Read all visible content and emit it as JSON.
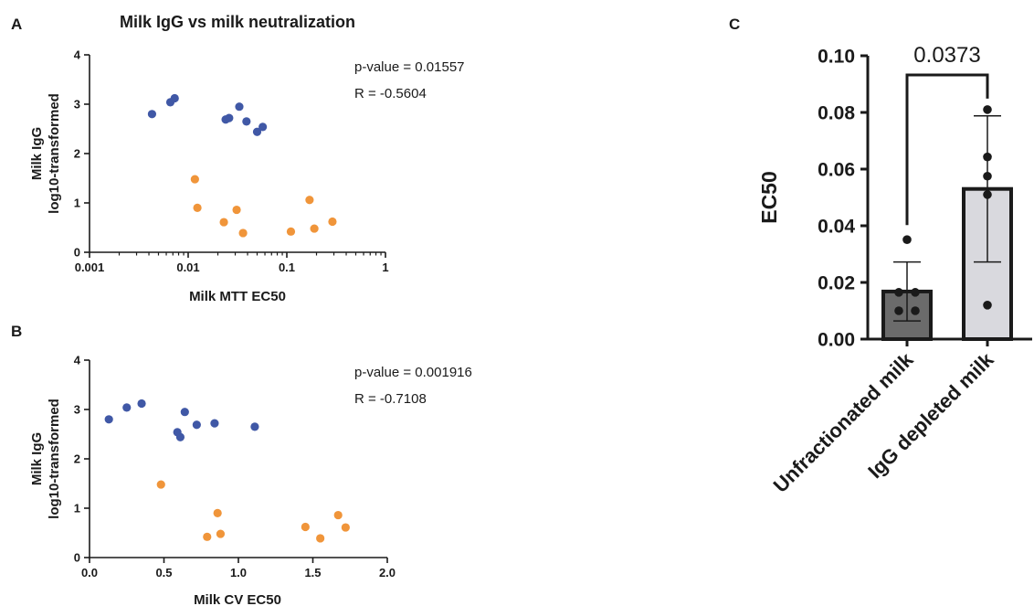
{
  "panels": {
    "a_letter": "A",
    "b_letter": "B",
    "c_letter": "C"
  },
  "colors": {
    "igg_high": "#4058a6",
    "igg_low": "#f0953a",
    "bar_unfractionated": "#6b6b6b",
    "bar_depleted": "#d9d9de",
    "axis": "#1a1a1a"
  },
  "chart_data": [
    {
      "type": "scatter",
      "panel": "A",
      "title": "Milk IgG vs milk neutralization",
      "xlabel": "Milk MTT EC50",
      "ylabel": [
        "Milk IgG",
        "log10-transformed"
      ],
      "xscale": "log",
      "xlim": [
        0.001,
        1
      ],
      "ylim": [
        0,
        4
      ],
      "xticks": [
        0.001,
        0.01,
        0.1,
        1
      ],
      "xtick_labels": [
        "0.001",
        "0.01",
        "0.1",
        "1"
      ],
      "yticks": [
        0,
        1,
        2,
        3,
        4
      ],
      "ytick_labels": [
        "0",
        "1",
        "2",
        "3",
        "4"
      ],
      "annotations": [
        "p-value = 0.01557",
        "R = -0.5604"
      ],
      "series": [
        {
          "color": "#4058a6",
          "points": [
            [
              0.0043,
              2.8
            ],
            [
              0.0066,
              3.04
            ],
            [
              0.0073,
              3.12
            ],
            [
              0.024,
              2.69
            ],
            [
              0.026,
              2.72
            ],
            [
              0.033,
              2.95
            ],
            [
              0.039,
              2.65
            ],
            [
              0.05,
              2.44
            ],
            [
              0.057,
              2.54
            ]
          ]
        },
        {
          "color": "#f0953a",
          "points": [
            [
              0.0117,
              1.48
            ],
            [
              0.0124,
              0.9
            ],
            [
              0.023,
              0.61
            ],
            [
              0.031,
              0.86
            ],
            [
              0.036,
              0.39
            ],
            [
              0.11,
              0.42
            ],
            [
              0.17,
              1.06
            ],
            [
              0.19,
              0.48
            ],
            [
              0.29,
              0.62
            ]
          ]
        }
      ]
    },
    {
      "type": "scatter",
      "panel": "B",
      "title": "",
      "xlabel": "Milk CV EC50",
      "ylabel": [
        "Milk IgG",
        "log10-transformed"
      ],
      "xscale": "linear",
      "xlim": [
        0,
        2.0
      ],
      "ylim": [
        0,
        4
      ],
      "xticks": [
        0,
        0.5,
        1.0,
        1.5,
        2.0
      ],
      "xtick_labels": [
        "0.0",
        "0.5",
        "1.0",
        "1.5",
        "2.0"
      ],
      "yticks": [
        0,
        1,
        2,
        3,
        4
      ],
      "ytick_labels": [
        "0",
        "1",
        "2",
        "3",
        "4"
      ],
      "annotations": [
        "p-value = 0.001916",
        "R = -0.7108"
      ],
      "series": [
        {
          "color": "#4058a6",
          "points": [
            [
              0.13,
              2.8
            ],
            [
              0.25,
              3.04
            ],
            [
              0.35,
              3.12
            ],
            [
              0.59,
              2.54
            ],
            [
              0.61,
              2.44
            ],
            [
              0.64,
              2.95
            ],
            [
              0.72,
              2.69
            ],
            [
              0.84,
              2.72
            ],
            [
              1.11,
              2.65
            ]
          ]
        },
        {
          "color": "#f0953a",
          "points": [
            [
              0.48,
              1.48
            ],
            [
              0.79,
              0.42
            ],
            [
              0.86,
              0.9
            ],
            [
              0.88,
              0.48
            ],
            [
              1.45,
              0.62
            ],
            [
              1.55,
              0.39
            ],
            [
              1.67,
              0.86
            ],
            [
              1.72,
              0.61
            ]
          ]
        }
      ]
    },
    {
      "type": "bar",
      "panel": "C",
      "title": "",
      "xlabel": "",
      "ylabel": "EC50",
      "ylim": [
        0,
        0.1
      ],
      "yticks": [
        0,
        0.02,
        0.04,
        0.06,
        0.08,
        0.1
      ],
      "ytick_labels": [
        "0.00",
        "0.02",
        "0.04",
        "0.06",
        "0.08",
        "0.10"
      ],
      "categories": [
        "Unfractionated milk",
        "IgG depleted milk"
      ],
      "values": [
        0.0168,
        0.053
      ],
      "error": [
        0.0104,
        0.0258
      ],
      "points": [
        [
          0.0351,
          0.0165,
          0.0165,
          0.01,
          0.01
        ],
        [
          0.081,
          0.0643,
          0.0575,
          0.051,
          0.012
        ]
      ],
      "significance": {
        "label": "0.0373",
        "between": [
          0,
          1
        ]
      }
    }
  ]
}
